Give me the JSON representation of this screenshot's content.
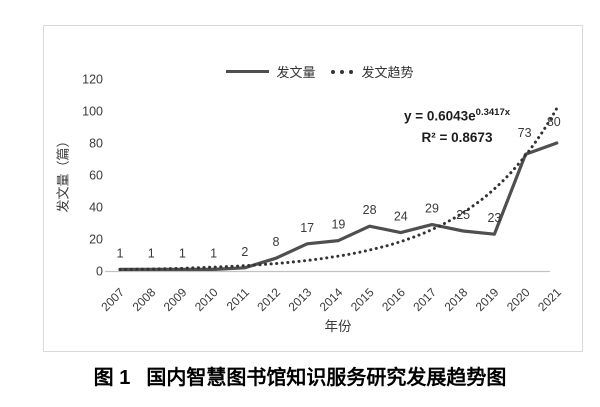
{
  "figure": {
    "caption_label": "图 1",
    "caption_title": "国内智慧图书馆知识服务研究发展趋势图"
  },
  "chart_data": {
    "type": "line",
    "title": "",
    "xlabel": "年份",
    "ylabel": "发文量（篇）",
    "ylim": [
      0,
      120
    ],
    "yticks": [
      0,
      20,
      40,
      60,
      80,
      100,
      120
    ],
    "grid": false,
    "legend_position": "top-center",
    "categories": [
      "2007",
      "2008",
      "2009",
      "2010",
      "2011",
      "2012",
      "2013",
      "2014",
      "2015",
      "2016",
      "2017",
      "2018",
      "2019",
      "2020",
      "2021"
    ],
    "series": [
      {
        "name": "发文量",
        "style": "solid-line",
        "color": "#4f4f4f",
        "values": [
          1,
          1,
          1,
          1,
          2,
          8,
          17,
          19,
          28,
          24,
          29,
          25,
          23,
          73,
          80
        ],
        "show_labels": true
      },
      {
        "name": "发文趋势",
        "style": "dotted-curve",
        "color": "#333333",
        "values": [
          0.9,
          1.2,
          1.7,
          2.4,
          3.3,
          4.7,
          6.6,
          9.3,
          13.1,
          18.4,
          25.9,
          36.5,
          51.3,
          72.3,
          101.7
        ],
        "show_labels": false
      }
    ],
    "annotations": {
      "equation_base": "y = 0.6043e",
      "equation_exponent": "0.3417x",
      "r_squared": "R² = 0.8673"
    }
  },
  "colors": {
    "series_line": "#4f4f4f",
    "trend_dots": "#333333",
    "axis_text": "#3a3a3a",
    "frame_border": "#d9d9d9",
    "baseline": "#c2c2c2"
  }
}
